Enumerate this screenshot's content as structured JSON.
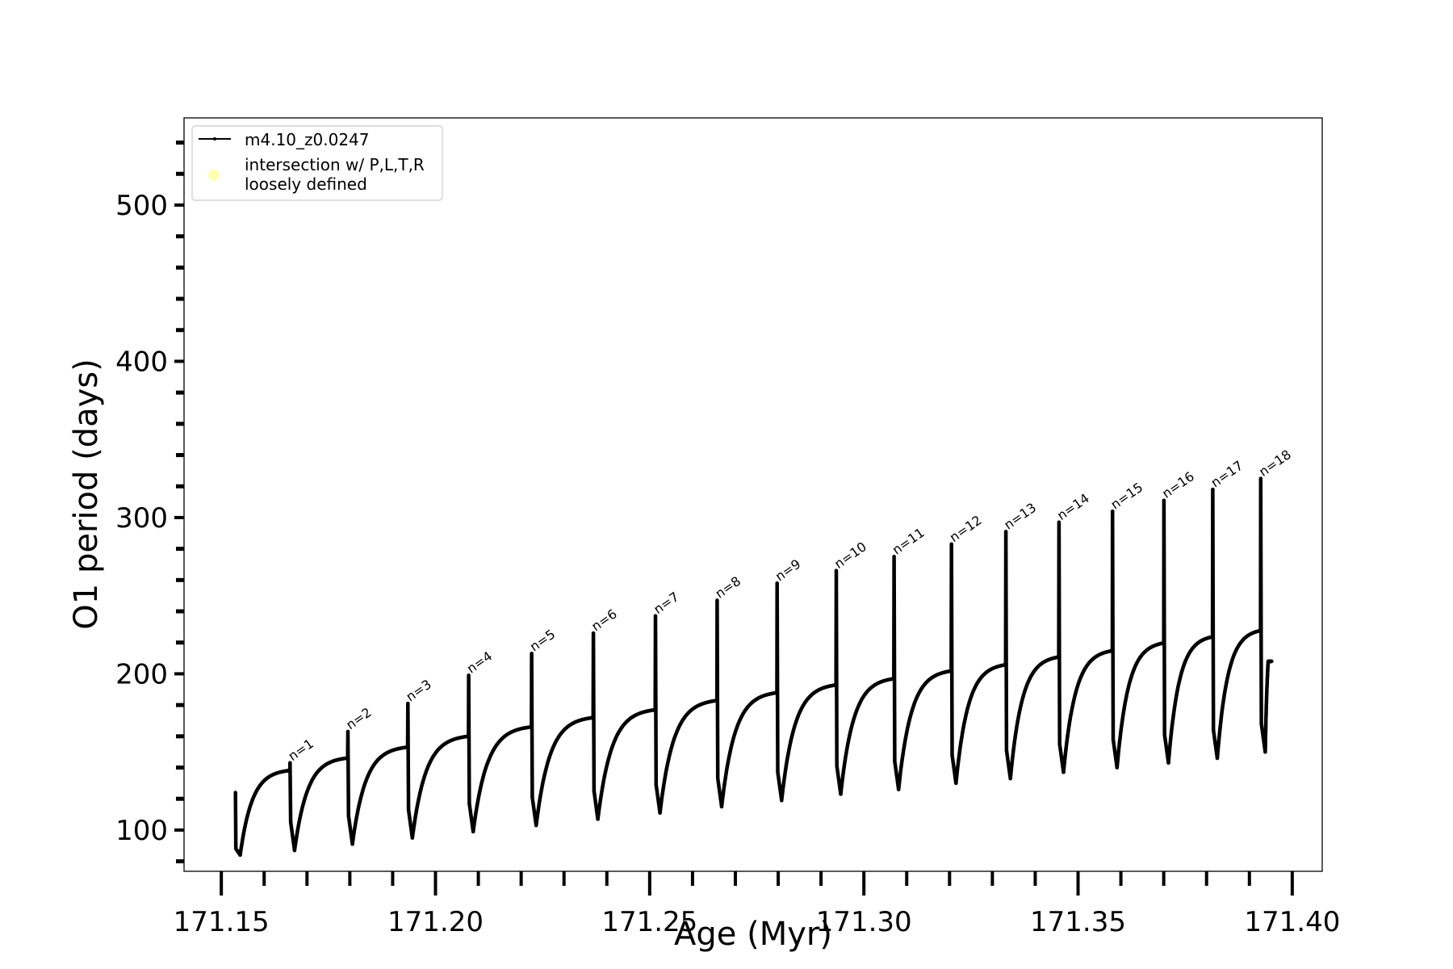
{
  "chart_data": {
    "type": "line",
    "xlabel": "Age (Myr)",
    "ylabel": "O1 period (days)",
    "xlim": [
      171.1413,
      171.407
    ],
    "ylim": [
      73.6,
      555.8
    ],
    "xticks": [
      "171.15",
      "171.20",
      "171.25",
      "171.30",
      "171.35",
      "171.40"
    ],
    "xtick_values": [
      171.15,
      171.2,
      171.25,
      171.3,
      171.35,
      171.4
    ],
    "yticks": [
      "100",
      "200",
      "300",
      "400",
      "500"
    ],
    "ytick_values": [
      100,
      200,
      300,
      400,
      500
    ],
    "grid": false,
    "legend_position": "top-left",
    "series": [
      {
        "name": "m4.10_z0.0247",
        "color": "#000000",
        "marker": "dot",
        "initial": {
          "age": 171.1533,
          "value": 124
        },
        "cycle_starts": [
          171.1533,
          171.166,
          171.1795,
          171.1935,
          171.2077,
          171.2224,
          171.2368,
          171.2513,
          171.2657,
          171.2797,
          171.2935,
          171.307,
          171.3204,
          171.3331,
          171.3455,
          171.358,
          171.37,
          171.3814,
          171.3926
        ],
        "end": {
          "age": 171.3952,
          "value": 208
        },
        "pulse_peaks": [
          143,
          163,
          181,
          199,
          213,
          226,
          237,
          247,
          258,
          266,
          275,
          283,
          291,
          297,
          304,
          311,
          318,
          325
        ],
        "cycle_minima": [
          84,
          87,
          91,
          95,
          99,
          103,
          107,
          111,
          115,
          119,
          123,
          126,
          130,
          133,
          137,
          140,
          143,
          146,
          150
        ],
        "cycle_plateaus": [
          139,
          147,
          154,
          161,
          167,
          173,
          178,
          184,
          189,
          194,
          198,
          203,
          207,
          212,
          216,
          221,
          225,
          229
        ]
      },
      {
        "name": "intersection w/ P,L,T,R\nloosely defined",
        "color": "#ffffb3",
        "marker": "circle",
        "points": []
      }
    ],
    "annotations": [
      "n=1",
      "n=2",
      "n=3",
      "n=4",
      "n=5",
      "n=6",
      "n=7",
      "n=8",
      "n=9",
      "n=10",
      "n=11",
      "n=12",
      "n=13",
      "n=14",
      "n=15",
      "n=16",
      "n=17",
      "n=18"
    ]
  },
  "legend": {
    "line_label": "m4.10_z0.0247",
    "marker_label_1": "intersection w/ P,L,T,R",
    "marker_label_2": "loosely defined"
  }
}
